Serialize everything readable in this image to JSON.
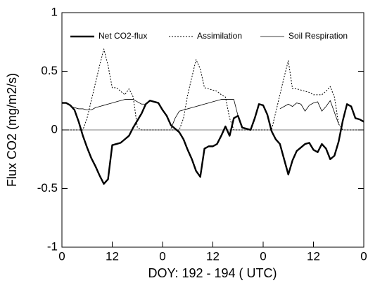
{
  "chart_data": {
    "type": "line",
    "xlabel": "DOY: 192 - 194 ( UTC)",
    "ylabel": "Flux CO2 (mg/m2/s)",
    "x": [
      0,
      1,
      2,
      3,
      4,
      5,
      6,
      7,
      8,
      9,
      10,
      11,
      12,
      13,
      14,
      15,
      16,
      17,
      18,
      19,
      20,
      21,
      22,
      23,
      24,
      25,
      26,
      27,
      28,
      29,
      30,
      31,
      32,
      33,
      34,
      35,
      36,
      37,
      38,
      39,
      40,
      41,
      42,
      43,
      44,
      45,
      46,
      47,
      48,
      49,
      50,
      51,
      52,
      53,
      54,
      55,
      56,
      57,
      58,
      59,
      60,
      61,
      62,
      63,
      64,
      65,
      66,
      67,
      68,
      69,
      70,
      71,
      72
    ],
    "series": [
      {
        "name": "Net CO2-flux",
        "color": "#000000",
        "line_style": "thick",
        "values": [
          0.23,
          0.23,
          0.21,
          0.17,
          0.07,
          -0.05,
          -0.15,
          -0.24,
          -0.31,
          -0.39,
          -0.46,
          -0.42,
          -0.13,
          -0.12,
          -0.11,
          -0.08,
          -0.05,
          0.02,
          0.08,
          0.14,
          0.22,
          0.25,
          0.24,
          0.23,
          0.17,
          0.12,
          0.04,
          0.01,
          -0.02,
          -0.08,
          -0.17,
          -0.25,
          -0.35,
          -0.4,
          -0.16,
          -0.14,
          -0.14,
          -0.12,
          -0.05,
          0.03,
          -0.05,
          0.1,
          0.12,
          0.02,
          0.01,
          0.0,
          0.1,
          0.22,
          0.21,
          0.13,
          -0.01,
          -0.08,
          -0.12,
          -0.25,
          -0.38,
          -0.26,
          -0.18,
          -0.15,
          -0.12,
          -0.11,
          -0.17,
          -0.19,
          -0.12,
          -0.16,
          -0.25,
          -0.22,
          -0.1,
          0.08,
          0.22,
          0.2,
          0.1,
          0.09,
          0.07
        ]
      },
      {
        "name": "Assimilation",
        "color": "#000000",
        "line_style": "dotted",
        "values": [
          0,
          0,
          0,
          0,
          0,
          0,
          0.1,
          0.25,
          0.4,
          0.55,
          0.69,
          0.55,
          0.36,
          0.36,
          0.33,
          0.3,
          0.35,
          0.28,
          0.02,
          0,
          0,
          0,
          0,
          0,
          0,
          0,
          0,
          0,
          0,
          0.1,
          0.3,
          0.45,
          0.6,
          0.52,
          0.36,
          0.35,
          0.34,
          0.33,
          0.3,
          0.28,
          0.1,
          0,
          0,
          0,
          0,
          0,
          0,
          0,
          0,
          0,
          0,
          0.15,
          0.3,
          0.45,
          0.59,
          0.35,
          0.35,
          0.34,
          0.33,
          0.32,
          0.3,
          0.3,
          0.3,
          0.33,
          0.37,
          0.28,
          0.05,
          0,
          0,
          0,
          0,
          0,
          0
        ]
      },
      {
        "name": "Soil Respiration",
        "color": "#000000",
        "line_style": "thin",
        "values": [
          null,
          null,
          0.2,
          0.19,
          0.18,
          0.18,
          0.17,
          0.17,
          0.19,
          0.2,
          0.21,
          0.22,
          0.23,
          0.24,
          0.25,
          0.26,
          0.26,
          0.26,
          0.24,
          0.22,
          0.22,
          null,
          null,
          null,
          null,
          null,
          0.01,
          0.1,
          0.16,
          0.17,
          0.18,
          0.19,
          0.2,
          0.21,
          0.22,
          0.23,
          0.24,
          0.25,
          0.26,
          0.26,
          0.26,
          0.26,
          0.12,
          null,
          null,
          null,
          null,
          null,
          null,
          null,
          null,
          null,
          0.18,
          0.2,
          0.22,
          0.2,
          0.23,
          0.22,
          0.16,
          0.21,
          0.23,
          0.24,
          0.16,
          0.2,
          0.25,
          0.15,
          0.05,
          null,
          null,
          null,
          null,
          null,
          null
        ]
      }
    ],
    "xlim": [
      0,
      72
    ],
    "xticks": [
      0,
      12,
      {
        "value": 24,
        "label": "0"
      },
      {
        "value": 36,
        "label": "12"
      },
      {
        "value": 48,
        "label": "0"
      },
      {
        "value": 60,
        "label": "12"
      },
      {
        "value": 72,
        "label": "0"
      }
    ],
    "ylim": [
      -1,
      1
    ],
    "yticks": [
      -1,
      -0.5,
      0,
      0.5,
      1
    ],
    "zero_line": true,
    "legend": "top"
  }
}
